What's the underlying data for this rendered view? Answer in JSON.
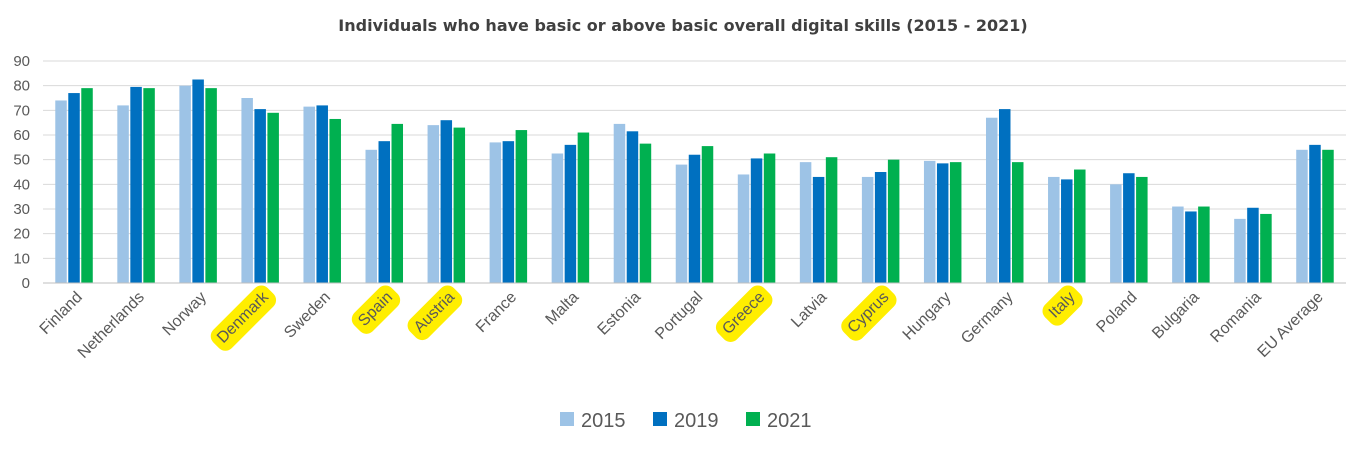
{
  "chart_data": {
    "type": "bar",
    "title": "Individuals who have basic or above basic overall digital skills (2015 - 2021)",
    "xlabel": "",
    "ylabel": "",
    "ylim": [
      0,
      90
    ],
    "yticks": [
      "0",
      "10",
      "20",
      "30",
      "40",
      "50",
      "60",
      "70",
      "80",
      "90"
    ],
    "grid": true,
    "legend_position": "bottom",
    "categories": [
      "Finland",
      "Netherlands",
      "Norway",
      "Denmark",
      "Sweden",
      "Spain",
      "Austria",
      "France",
      "Malta",
      "Estonia",
      "Portugal",
      "Greece",
      "Latvia",
      "Cyprus",
      "Hungary",
      "Germany",
      "Italy",
      "Poland",
      "Bulgaria",
      "Romania",
      "EU Average"
    ],
    "highlighted_categories": [
      "Denmark",
      "Spain",
      "Austria",
      "Greece",
      "Cyprus",
      "Italy"
    ],
    "highlight_color": "#ffee00",
    "series": [
      {
        "name": "2015",
        "color": "#9dc3e6",
        "values": [
          74,
          72,
          80,
          75,
          71.5,
          54,
          64,
          57,
          52.5,
          64.5,
          48,
          44,
          49,
          43,
          49.5,
          67,
          43,
          40,
          31,
          26,
          54
        ]
      },
      {
        "name": "2019",
        "color": "#0070c0",
        "values": [
          77,
          79.5,
          82.5,
          70.5,
          72,
          57.5,
          66,
          57.5,
          56,
          61.5,
          52,
          50.5,
          43,
          45,
          48.5,
          70.5,
          42,
          44.5,
          29,
          30.5,
          56
        ]
      },
      {
        "name": "2021",
        "color": "#00b050",
        "values": [
          79,
          79,
          79,
          69,
          66.5,
          64.5,
          63,
          62,
          61,
          56.5,
          55.5,
          52.5,
          51,
          50,
          49,
          49,
          46,
          43,
          31,
          28,
          54
        ]
      }
    ]
  }
}
